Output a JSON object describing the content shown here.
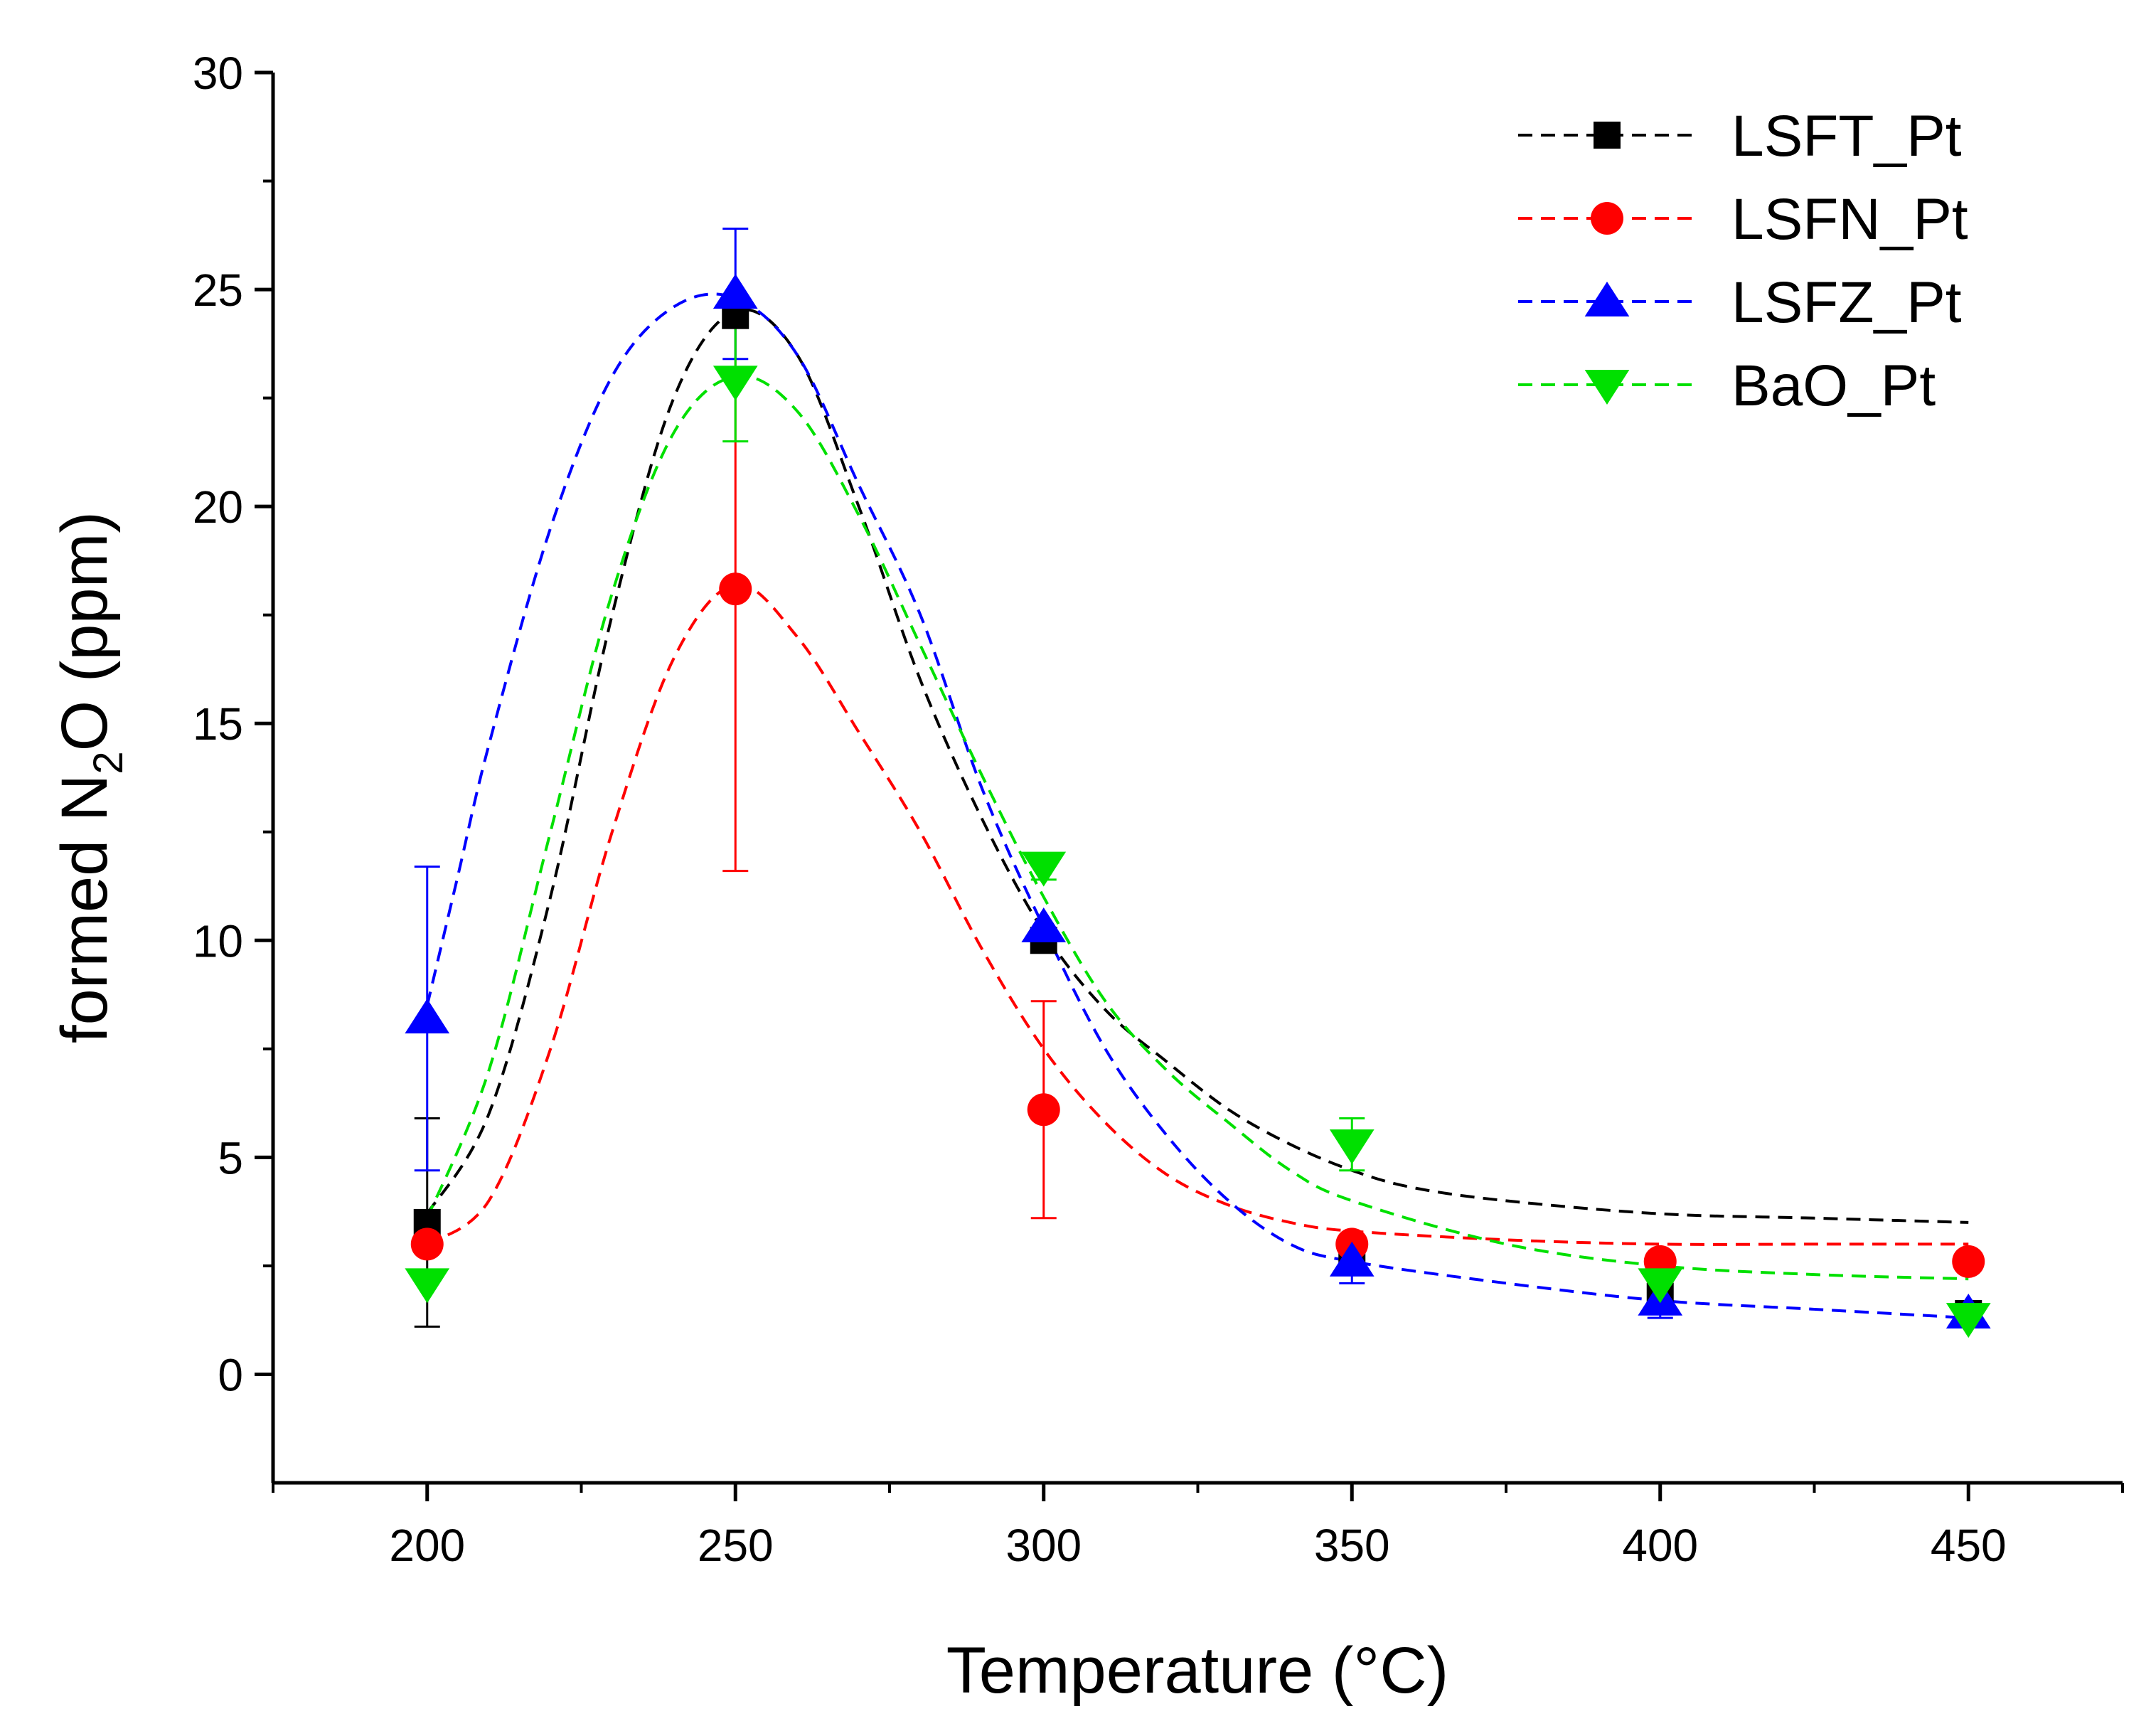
{
  "chart_data": {
    "type": "line",
    "title": "",
    "xlabel": "Temperature (°C)",
    "ylabel": "formed N2O (ppm)",
    "ylabel_parts": {
      "before": "formed N",
      "sub": "2",
      "after": "O (ppm)"
    },
    "xlim": [
      175,
      475
    ],
    "ylim": [
      -2.5,
      30
    ],
    "xticks": [
      200,
      250,
      300,
      350,
      400,
      450
    ],
    "yticks": [
      0,
      5,
      10,
      15,
      20,
      25,
      30
    ],
    "legend_position": "top-right",
    "series": [
      {
        "name": "LSFT_Pt",
        "color": "#000000",
        "marker": "square",
        "x": [
          200,
          250,
          300,
          350,
          400,
          450
        ],
        "y": [
          3.5,
          24.4,
          10.0,
          2.8,
          1.8,
          1.4
        ],
        "err": [
          2.4,
          0,
          0,
          0,
          0,
          0
        ],
        "fit_x": [
          200,
          210,
          220,
          230,
          240,
          250,
          260,
          270,
          280,
          290,
          300,
          310,
          320,
          330,
          340,
          350,
          360,
          375,
          400,
          425,
          450
        ],
        "fit_y": [
          3.7,
          6.0,
          11.0,
          17.5,
          22.5,
          24.5,
          23.5,
          20.0,
          16.0,
          12.8,
          10.2,
          8.4,
          7.2,
          6.1,
          5.3,
          4.7,
          4.3,
          4.0,
          3.7,
          3.6,
          3.5
        ]
      },
      {
        "name": "LSFN_Pt",
        "color": "#ff0000",
        "marker": "circle",
        "x": [
          200,
          250,
          300,
          350,
          400,
          450
        ],
        "y": [
          3.0,
          18.1,
          6.1,
          3.0,
          2.6,
          2.6
        ],
        "err": [
          0,
          6.5,
          2.5,
          0,
          0,
          0
        ],
        "fit_x": [
          200,
          210,
          220,
          230,
          240,
          250,
          260,
          270,
          280,
          290,
          300,
          310,
          320,
          330,
          340,
          350,
          375,
          400,
          425,
          450
        ],
        "fit_y": [
          3.0,
          4.0,
          7.5,
          12.5,
          16.5,
          18.2,
          17.0,
          14.8,
          12.5,
          9.8,
          7.5,
          5.8,
          4.6,
          3.9,
          3.5,
          3.3,
          3.1,
          3.0,
          3.0,
          3.0
        ]
      },
      {
        "name": "LSFZ_Pt",
        "color": "#0000ff",
        "marker": "triangle-up",
        "x": [
          200,
          250,
          300,
          350,
          400,
          450
        ],
        "y": [
          8.2,
          24.9,
          10.3,
          2.6,
          1.7,
          1.4
        ],
        "err": [
          3.5,
          1.5,
          0,
          0.5,
          0.4,
          0
        ],
        "fit_x": [
          200,
          205,
          210,
          220,
          230,
          240,
          250,
          260,
          270,
          280,
          290,
          300,
          310,
          320,
          330,
          340,
          350,
          375,
          400,
          425,
          450
        ],
        "fit_y": [
          8.5,
          11.5,
          14.5,
          19.5,
          23.0,
          24.6,
          24.8,
          23.5,
          20.5,
          17.5,
          13.5,
          10.3,
          7.5,
          5.5,
          4.0,
          3.0,
          2.6,
          2.1,
          1.7,
          1.5,
          1.3
        ]
      },
      {
        "name": "BaO_Pt",
        "color": "#00e000",
        "marker": "triangle-down",
        "x": [
          200,
          250,
          300,
          350,
          400,
          450
        ],
        "y": [
          2.1,
          22.9,
          11.7,
          5.3,
          2.1,
          1.3
        ],
        "err": [
          0,
          1.4,
          0.3,
          0.6,
          0,
          0
        ],
        "fit_x": [
          200,
          210,
          220,
          230,
          240,
          250,
          260,
          270,
          280,
          290,
          300,
          310,
          320,
          330,
          340,
          350,
          375,
          400,
          425,
          450
        ],
        "fit_y": [
          3.6,
          7.0,
          12.5,
          18.0,
          21.7,
          23.0,
          22.2,
          19.8,
          16.8,
          13.8,
          11.0,
          8.6,
          7.0,
          5.8,
          4.7,
          4.0,
          3.0,
          2.5,
          2.3,
          2.2
        ]
      }
    ]
  }
}
